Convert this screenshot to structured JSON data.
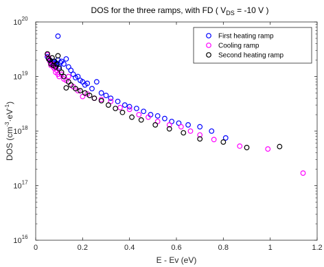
{
  "chart_data": {
    "type": "scatter",
    "title": "DOS for the three ramps, with FD ( V_DS = -10 V )",
    "title_parts": {
      "main": "DOS for the three ramps, with FD ( V",
      "sub": "DS",
      "tail": " = -10 V )"
    },
    "xlabel": "E - Ev (eV)",
    "ylabel_parts": {
      "a": "DOS (cm",
      "sup1": "-3",
      "b": "·eV",
      "sup2": "-1",
      "c": ")"
    },
    "xlim": [
      0,
      1.2
    ],
    "ylim": [
      1e+16,
      1e+20
    ],
    "yscale": "log",
    "x_ticks": [
      0,
      0.2,
      0.4,
      0.6,
      0.8,
      1.0,
      1.2
    ],
    "x_tick_labels": [
      "0",
      "0.2",
      "0.4",
      "0.6",
      "0.8",
      "1",
      "1.2"
    ],
    "y_ticks": [
      1e+16,
      1e+17,
      1e+18,
      1e+19,
      1e+20
    ],
    "y_tick_base": "10",
    "y_tick_exps": [
      "16",
      "17",
      "18",
      "19",
      "20"
    ],
    "grid": false,
    "legend_position": "top-right",
    "marker": "open-circle",
    "series": [
      {
        "name": "First heating ramp",
        "color": "#0000ff",
        "x": [
          0.05,
          0.06,
          0.065,
          0.07,
          0.075,
          0.08,
          0.085,
          0.09,
          0.095,
          0.1,
          0.105,
          0.11,
          0.12,
          0.13,
          0.14,
          0.15,
          0.16,
          0.17,
          0.18,
          0.19,
          0.2,
          0.21,
          0.22,
          0.24,
          0.26,
          0.28,
          0.3,
          0.32,
          0.35,
          0.38,
          0.4,
          0.43,
          0.46,
          0.49,
          0.52,
          0.55,
          0.58,
          0.61,
          0.65,
          0.7,
          0.75,
          0.81,
          0.095
        ],
        "y": [
          2.3e+19,
          2e+19,
          1.9e+19,
          1.8e+19,
          1.9e+19,
          1.7e+19,
          1.8e+19,
          1.6e+19,
          2e+19,
          1.5e+19,
          1.8e+19,
          1.9e+19,
          1.7e+19,
          2.1e+19,
          1.5e+19,
          1.3e+19,
          1.1e+19,
          9.5e+18,
          1e+19,
          8.5e+18,
          8e+18,
          7e+18,
          7.5e+18,
          6e+18,
          8e+18,
          5e+18,
          4.5e+18,
          4e+18,
          3.5e+18,
          3e+18,
          2.8e+18,
          2.6e+18,
          2.3e+18,
          2e+18,
          1.9e+18,
          1.7e+18,
          1.5e+18,
          1.4e+18,
          1.3e+18,
          1.2e+18,
          1e+18,
          7.5e+17,
          5.5e+19
        ]
      },
      {
        "name": "Cooling ramp",
        "color": "#ff00ff",
        "x": [
          0.05,
          0.055,
          0.06,
          0.065,
          0.07,
          0.075,
          0.08,
          0.085,
          0.09,
          0.095,
          0.1,
          0.11,
          0.12,
          0.13,
          0.14,
          0.15,
          0.16,
          0.18,
          0.2,
          0.22,
          0.25,
          0.28,
          0.32,
          0.36,
          0.4,
          0.44,
          0.48,
          0.52,
          0.57,
          0.62,
          0.66,
          0.7,
          0.76,
          0.87,
          0.99,
          1.14
        ],
        "y": [
          2.5e+19,
          2.2e+19,
          1.9e+19,
          1.6e+19,
          1.7e+19,
          1.5e+19,
          1.4e+19,
          1.2e+19,
          1.3e+19,
          1.1e+19,
          1e+19,
          1.1e+19,
          9e+18,
          8.5e+18,
          1e+19,
          7e+18,
          6.5e+18,
          5.5e+18,
          4.3e+18,
          4.8e+18,
          4e+18,
          3.8e+18,
          3.5e+18,
          2.7e+18,
          2.5e+18,
          2e+18,
          1.8e+18,
          1.5e+18,
          1.3e+18,
          1.2e+18,
          1e+18,
          8.5e+17,
          7e+17,
          5.3e+17,
          4.7e+17,
          1.7e+17
        ]
      },
      {
        "name": "Second heating ramp",
        "color": "#000000",
        "x": [
          0.05,
          0.055,
          0.06,
          0.065,
          0.07,
          0.075,
          0.08,
          0.085,
          0.09,
          0.095,
          0.1,
          0.11,
          0.12,
          0.13,
          0.14,
          0.15,
          0.17,
          0.19,
          0.21,
          0.23,
          0.25,
          0.28,
          0.31,
          0.34,
          0.37,
          0.41,
          0.45,
          0.51,
          0.57,
          0.63,
          0.7,
          0.8,
          0.9,
          1.04
        ],
        "y": [
          2.6e+19,
          2.1e+19,
          2e+19,
          1.7e+19,
          2.2e+19,
          1.6e+19,
          1.9e+19,
          1.5e+19,
          1.7e+19,
          2.4e+19,
          1.4e+19,
          1.2e+19,
          1e+19,
          6.2e+18,
          8e+18,
          7e+18,
          6e+18,
          5.5e+18,
          5e+18,
          4.5e+18,
          4e+18,
          3.6e+18,
          3e+18,
          2.6e+18,
          2.2e+18,
          1.8e+18,
          1.6e+18,
          1.3e+18,
          1.1e+18,
          9.3e+17,
          7.2e+17,
          6.3e+17,
          5e+17,
          5.2e+17
        ]
      }
    ]
  }
}
